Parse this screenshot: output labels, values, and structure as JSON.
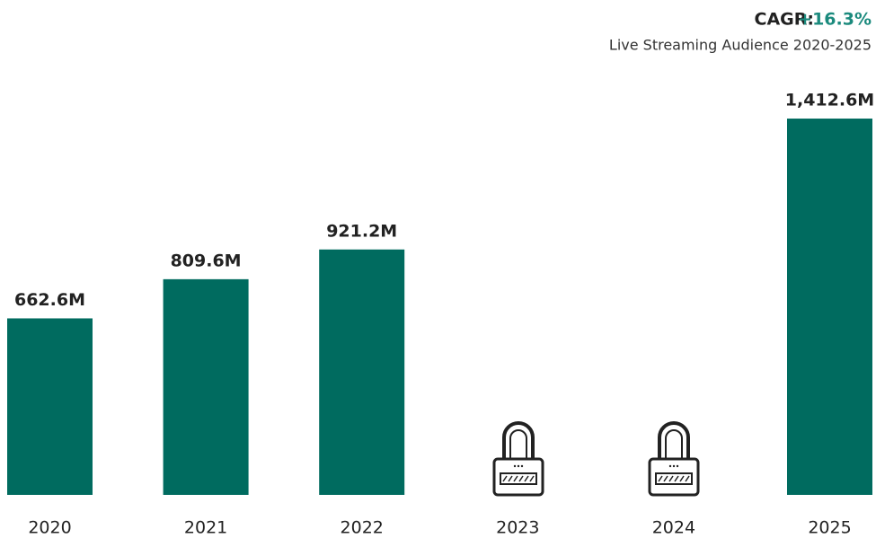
{
  "chart_data": {
    "type": "bar",
    "title_label": "CAGR:",
    "title_value": "+16.3%",
    "subtitle": "Live Streaming Audience 2020-2025",
    "categories": [
      "2020",
      "2021",
      "2022",
      "2023",
      "2024",
      "2025"
    ],
    "values": [
      662.6,
      809.6,
      921.2,
      null,
      null,
      1412.6
    ],
    "value_labels": [
      "662.6M",
      "809.6M",
      "921.2M",
      null,
      null,
      "1,412.6M"
    ],
    "color": "#006b5f"
  }
}
